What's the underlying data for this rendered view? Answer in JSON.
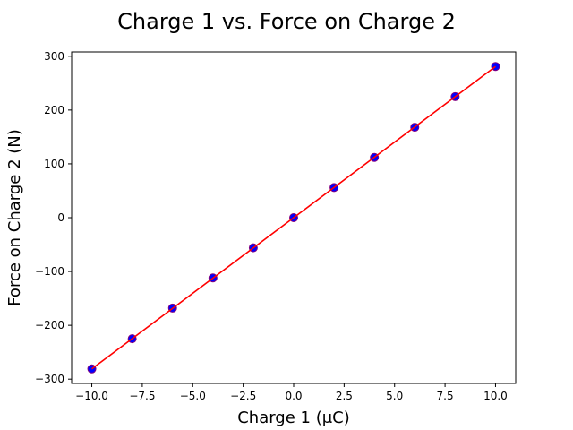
{
  "chart_data": {
    "type": "scatter",
    "title": "Charge 1 vs. Force on Charge 2",
    "xlabel": "Charge 1 (μC)",
    "ylabel": "Force on Charge 2 (N)",
    "xlim": [
      -11,
      11
    ],
    "ylim": [
      -308,
      308
    ],
    "x_ticks": [
      -10.0,
      -7.5,
      -5.0,
      -2.5,
      0.0,
      2.5,
      5.0,
      7.5,
      10.0
    ],
    "x_tick_labels": [
      "−10.0",
      "−7.5",
      "−5.0",
      "−2.5",
      "0.0",
      "2.5",
      "5.0",
      "7.5",
      "10.0"
    ],
    "y_ticks": [
      -300,
      -200,
      -100,
      0,
      100,
      200,
      300
    ],
    "y_tick_labels": [
      "−300",
      "−200",
      "−100",
      "0",
      "100",
      "200",
      "300"
    ],
    "grid": false,
    "series": [
      {
        "kind": "scatter",
        "color": "#0000ff",
        "edge_color": "#800080",
        "x": [
          -10,
          -8,
          -6,
          -4,
          -2,
          0,
          2,
          4,
          6,
          8,
          10
        ],
        "y": [
          -281,
          -225,
          -168,
          -112,
          -56,
          0,
          56,
          112,
          168,
          225,
          281
        ]
      },
      {
        "kind": "line",
        "color": "#ff0000",
        "x": [
          -10,
          10
        ],
        "y": [
          -281,
          281
        ]
      }
    ]
  }
}
